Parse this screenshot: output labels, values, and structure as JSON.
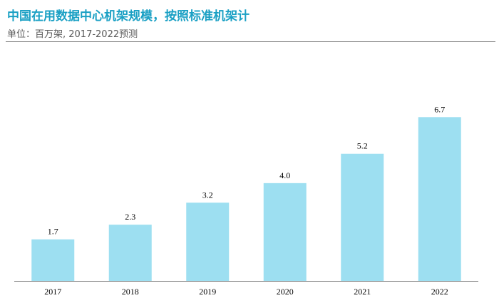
{
  "header": {
    "title": "中国在用数据中心机架规模，按照标准机架计",
    "subtitle": "单位：百万架, 2017-2022预测"
  },
  "chart_data": {
    "type": "bar",
    "categories": [
      "2017",
      "2018",
      "2019",
      "2020",
      "2021",
      "2022"
    ],
    "values": [
      1.7,
      2.3,
      3.2,
      4.0,
      5.2,
      6.7
    ],
    "value_labels": [
      "1.7",
      "2.3",
      "3.2",
      "4.0",
      "5.2",
      "6.7"
    ],
    "ylim": [
      0,
      7.7
    ],
    "grid": false,
    "legend": "none",
    "bar_color": "#9ddff1"
  }
}
